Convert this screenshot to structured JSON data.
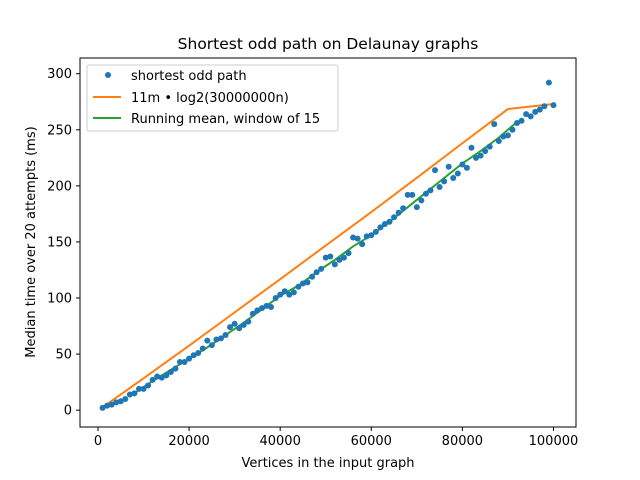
{
  "chart_data": {
    "type": "scatter",
    "title": "Shortest odd path on Delaunay graphs",
    "xlabel": "Vertices in the input graph",
    "ylabel": "Median time over 20 attempts (ms)",
    "xlim": [
      -3950,
      104950
    ],
    "ylim": [
      -15,
      314
    ],
    "xticks": [
      0,
      20000,
      40000,
      60000,
      80000,
      100000
    ],
    "yticks": [
      0,
      50,
      100,
      150,
      200,
      250,
      300
    ],
    "legend_position": "upper-left",
    "colors": {
      "points": "#1f77b4",
      "fit": "#ff7f0e",
      "mean": "#2ca02c"
    },
    "series": [
      {
        "name": "shortest odd path",
        "kind": "scatter",
        "x": [
          1000,
          2000,
          3000,
          4000,
          5000,
          6000,
          7000,
          8000,
          9000,
          10000,
          11000,
          12000,
          13000,
          14000,
          15000,
          16000,
          17000,
          18000,
          19000,
          20000,
          21000,
          22000,
          23000,
          24000,
          25000,
          26000,
          27000,
          28000,
          29000,
          30000,
          31000,
          32000,
          33000,
          34000,
          35000,
          36000,
          37000,
          38000,
          39000,
          40000,
          41000,
          42000,
          43000,
          44000,
          45000,
          46000,
          47000,
          48000,
          49000,
          50000,
          51000,
          52000,
          53000,
          54000,
          55000,
          56000,
          57000,
          58000,
          59000,
          60000,
          61000,
          62000,
          63000,
          64000,
          65000,
          66000,
          67000,
          68000,
          69000,
          70000,
          71000,
          72000,
          73000,
          74000,
          75000,
          76000,
          77000,
          78000,
          79000,
          80000,
          81000,
          82000,
          83000,
          84000,
          85000,
          86000,
          87000,
          88000,
          89000,
          90000,
          91000,
          92000,
          93000,
          94000,
          95000,
          96000,
          97000,
          98000,
          99000,
          100000
        ],
        "y": [
          2,
          4,
          5,
          7,
          8,
          10,
          14,
          15,
          19,
          19,
          22,
          27,
          30,
          29,
          31,
          34,
          37,
          43,
          43,
          46,
          49,
          51,
          55,
          62,
          58,
          63,
          64,
          67,
          74,
          77,
          73,
          76,
          79,
          86,
          89,
          91,
          93,
          92,
          100,
          103,
          106,
          103,
          105,
          110,
          113,
          114,
          119,
          123,
          126,
          136,
          137,
          130,
          134,
          136,
          140,
          154,
          153,
          148,
          155,
          156,
          159,
          163,
          166,
          168,
          172,
          176,
          180,
          192,
          192,
          181,
          187,
          193,
          196,
          214,
          199,
          204,
          217,
          207,
          211,
          219,
          216,
          234,
          225,
          227,
          231,
          235,
          255,
          240,
          244,
          245,
          250,
          256,
          258,
          264,
          262,
          266,
          268,
          271,
          292,
          272
        ]
      },
      {
        "name": "11m • log2(30000000n)",
        "kind": "line",
        "x": [
          1000,
          10000,
          20000,
          30000,
          40000,
          50000,
          60000,
          70000,
          80000,
          90000,
          100000
        ],
        "y": [
          2.6,
          28.4,
          57.5,
          87.2,
          116.8,
          146.8,
          176.6,
          207.2,
          238.0,
          268.5,
          273
        ]
      },
      {
        "name": "Running mean, window of 15",
        "kind": "line",
        "x": [
          8000,
          12000,
          16000,
          20000,
          24000,
          28000,
          32000,
          36000,
          40000,
          44000,
          48000,
          52000,
          56000,
          60000,
          64000,
          68000,
          72000,
          76000,
          80000,
          84000,
          88000,
          92000
        ],
        "y": [
          15,
          26,
          36,
          46,
          56,
          67,
          78,
          90,
          102,
          111,
          123,
          134,
          146,
          156,
          168,
          181,
          194,
          207,
          220,
          231,
          243,
          257
        ]
      }
    ]
  }
}
